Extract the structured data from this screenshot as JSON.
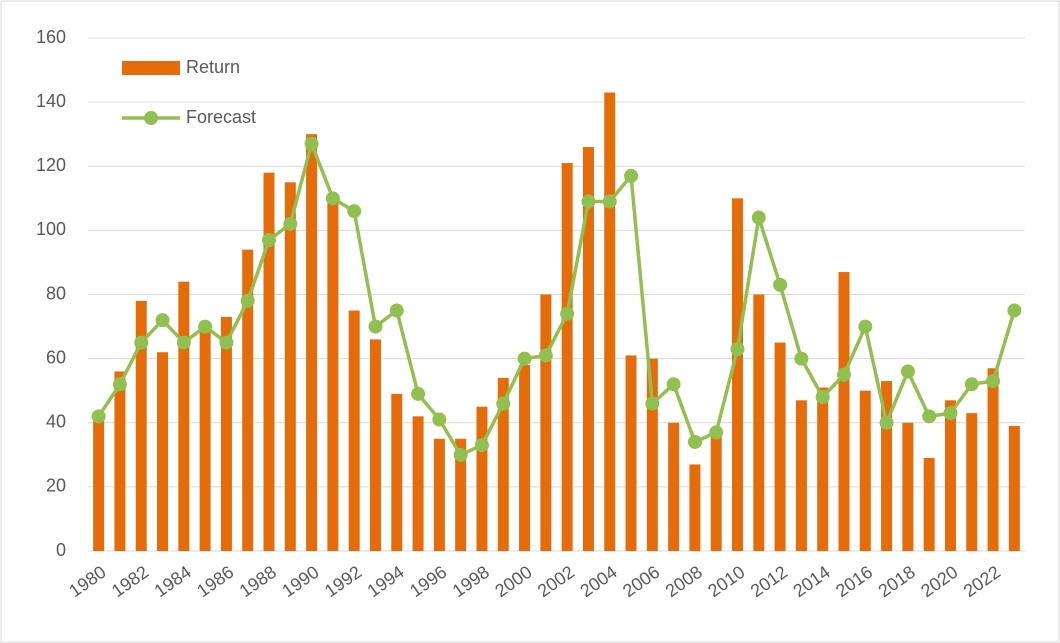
{
  "chart_data": {
    "type": "bar_line",
    "categories": [
      "1980",
      null,
      "1982",
      null,
      "1984",
      null,
      "1986",
      null,
      "1988",
      null,
      "1990",
      null,
      "1992",
      null,
      "1994",
      null,
      "1996",
      null,
      "1998",
      null,
      "2000",
      null,
      "2002",
      null,
      "2004",
      null,
      "2006",
      null,
      "2008",
      null,
      "2010",
      null,
      "2012",
      null,
      "2014",
      null,
      "2016",
      null,
      "2018",
      null,
      "2020",
      null,
      "2022",
      null
    ],
    "series": [
      {
        "name": "Return",
        "type": "bar",
        "color": "#e46c0a",
        "values": [
          41,
          56,
          78,
          62,
          84,
          70,
          73,
          94,
          118,
          115,
          130,
          110,
          75,
          66,
          49,
          42,
          35,
          35,
          45,
          54,
          58,
          80,
          121,
          126,
          143,
          61,
          60,
          40,
          27,
          36,
          110,
          80,
          65,
          47,
          51,
          87,
          50,
          53,
          40,
          29,
          47,
          43,
          57,
          39
        ]
      },
      {
        "name": "Forecast",
        "type": "line",
        "color": "#92c050",
        "values": [
          42,
          52,
          65,
          72,
          65,
          70,
          65,
          78,
          97,
          102,
          127,
          110,
          106,
          70,
          75,
          49,
          41,
          30,
          33,
          46,
          60,
          61,
          74,
          109,
          109,
          117,
          46,
          52,
          34,
          37,
          63,
          104,
          83,
          60,
          48,
          55,
          70,
          40,
          56,
          42,
          43,
          52,
          53,
          75
        ]
      }
    ],
    "ylim": [
      0,
      160
    ],
    "yticks": [
      0,
      20,
      40,
      60,
      80,
      100,
      120,
      140,
      160
    ],
    "grid": true,
    "legend": "upper left"
  }
}
